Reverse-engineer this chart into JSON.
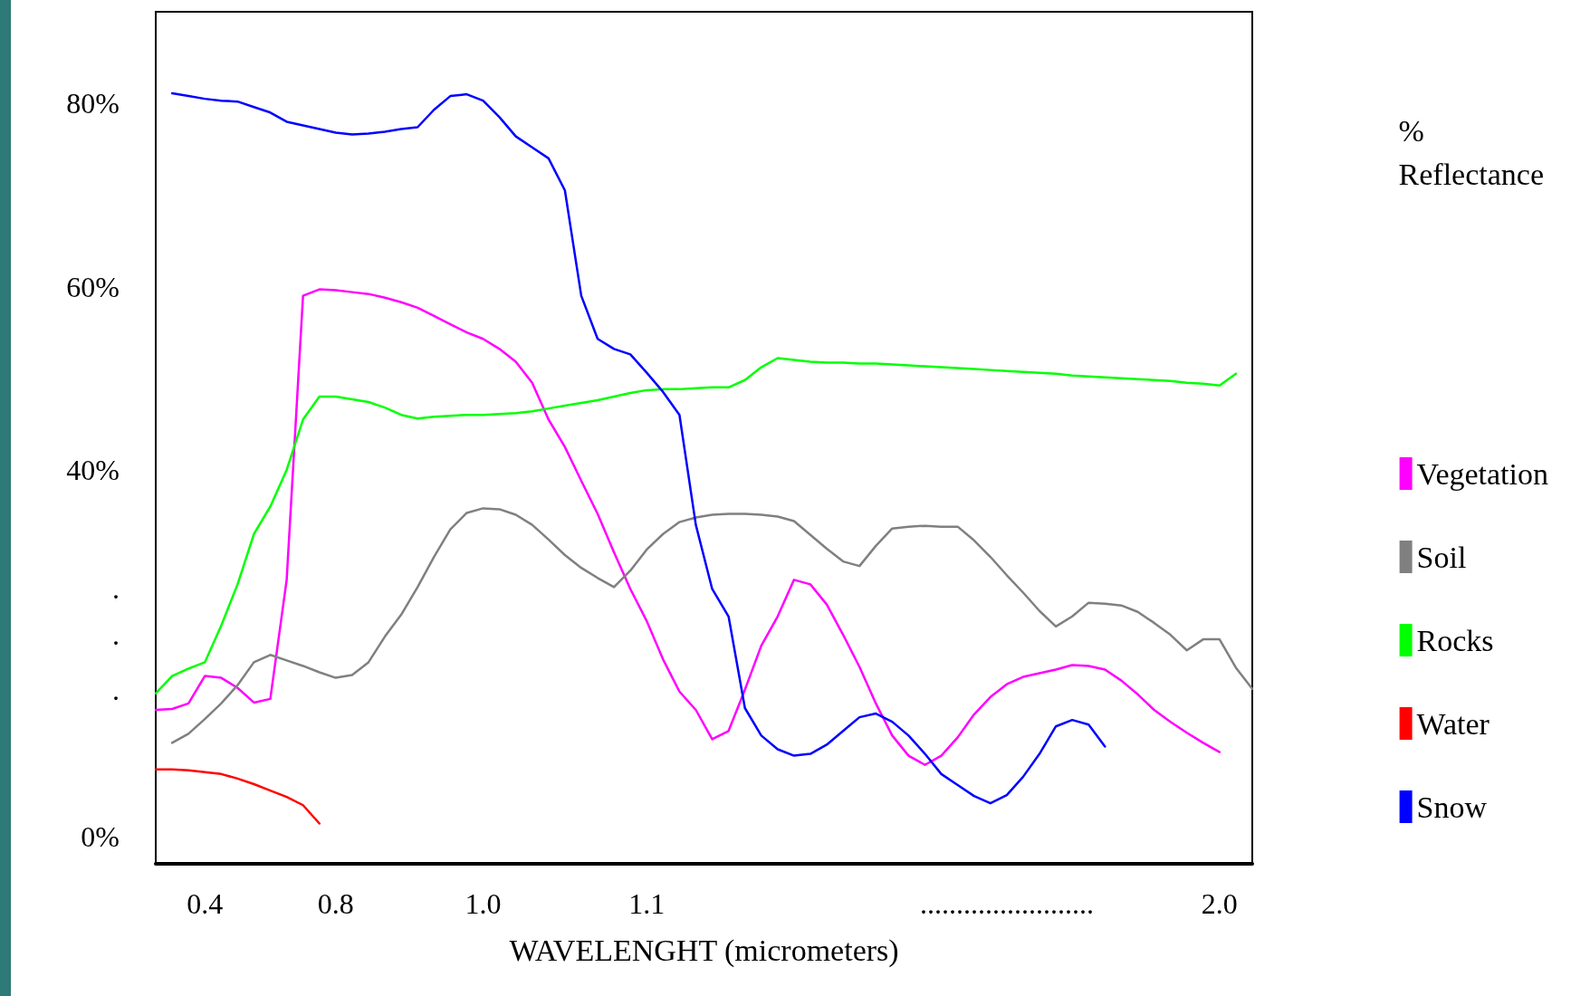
{
  "chart_data": {
    "type": "line",
    "xlabel": "WAVELENGHT (micrometers)",
    "ylabel": "% Reflectance",
    "categories": [
      null,
      null,
      null,
      "0.4",
      null,
      null,
      null,
      null,
      null,
      null,
      null,
      "0.8",
      null,
      null,
      null,
      null,
      null,
      null,
      null,
      null,
      "1.0",
      null,
      null,
      null,
      null,
      null,
      null,
      null,
      null,
      null,
      "1.1",
      null,
      null,
      null,
      null,
      null,
      null,
      null,
      null,
      null,
      null,
      null,
      null,
      null,
      null,
      null,
      null,
      null,
      null,
      null,
      null,
      null,
      "........................",
      null,
      null,
      null,
      null,
      null,
      null,
      null,
      null,
      null,
      null,
      null,
      null,
      "2.0",
      null,
      null
    ],
    "series": [
      {
        "name": "Vegetation",
        "color": "#ff00ff",
        "values": [
          13.8,
          13.9,
          14.5,
          17.5,
          17.3,
          16.2,
          14.6,
          15,
          28,
          59,
          59.7,
          59.6,
          59.4,
          59.2,
          58.8,
          58.3,
          57.7,
          56.8,
          55.9,
          55,
          54.3,
          53.2,
          51.8,
          49.5,
          45.5,
          42.5,
          38.8,
          35.2,
          31,
          27,
          23.5,
          19.3,
          15.8,
          13.8,
          10.6,
          11.5,
          16,
          20.8,
          24,
          28,
          27.5,
          25.3,
          22,
          18.5,
          14.5,
          11,
          8.8,
          7.8,
          8.8,
          10.8,
          13.3,
          15.2,
          16.6,
          17.4,
          17.8,
          18.2,
          18.7,
          18.6,
          18.2,
          17,
          15.5,
          13.8,
          12.5,
          11.3,
          10.2,
          9.2,
          null,
          null
        ]
      },
      {
        "name": "Soil",
        "color": "#808080",
        "values": [
          null,
          10.2,
          11.2,
          12.8,
          14.5,
          16.5,
          19,
          19.8,
          19.2,
          18.6,
          17.9,
          17.3,
          17.6,
          19,
          21.8,
          24.2,
          27.2,
          30.5,
          33.5,
          35.3,
          35.8,
          35.7,
          35.1,
          34,
          32.4,
          30.7,
          29.3,
          28.2,
          27.2,
          29,
          31.3,
          33,
          34.3,
          34.8,
          35.1,
          35.2,
          35.2,
          35.1,
          34.9,
          34.4,
          32.9,
          31.4,
          30,
          29.5,
          31.7,
          33.6,
          33.8,
          33.9,
          33.8,
          33.8,
          32.3,
          30.5,
          28.5,
          26.6,
          24.6,
          22.9,
          24,
          25.5,
          25.4,
          25.2,
          24.5,
          23.3,
          22,
          20.3,
          21.5,
          21.5,
          18.4,
          16.1
        ]
      },
      {
        "name": "Rocks",
        "color": "#00ff00",
        "values": [
          15.6,
          17.5,
          18.3,
          19,
          23,
          27.5,
          33,
          36,
          40,
          45.5,
          48,
          48,
          47.7,
          47.4,
          46.8,
          46,
          45.6,
          45.8,
          45.9,
          46,
          46,
          46.1,
          46.2,
          46.4,
          46.7,
          47,
          47.3,
          47.6,
          48,
          48.4,
          48.7,
          48.8,
          48.8,
          48.9,
          49,
          49,
          49.8,
          51.2,
          52.2,
          52,
          51.8,
          51.7,
          51.7,
          51.6,
          51.6,
          51.5,
          51.4,
          51.3,
          51.2,
          51.1,
          51,
          50.9,
          50.8,
          50.7,
          50.6,
          50.5,
          50.3,
          50.2,
          50.1,
          50,
          49.9,
          49.8,
          49.7,
          49.5,
          49.4,
          49.2,
          50.5,
          null
        ]
      },
      {
        "name": "Water",
        "color": "#ff0000",
        "values": [
          7.3,
          7.3,
          7.2,
          7,
          6.8,
          6.3,
          5.7,
          5,
          4.3,
          3.4,
          1.4,
          null,
          null,
          null,
          null,
          null,
          null,
          null,
          null,
          null,
          null,
          null,
          null,
          null,
          null,
          null,
          null,
          null,
          null,
          null,
          null,
          null,
          null,
          null,
          null,
          null,
          null,
          null,
          null,
          null,
          null,
          null,
          null,
          null,
          null,
          null,
          null,
          null,
          null,
          null,
          null,
          null,
          null,
          null,
          null,
          null,
          null,
          null,
          null,
          null,
          null,
          null,
          null,
          null,
          null,
          null,
          null,
          null
        ]
      },
      {
        "name": "Snow",
        "color": "#0000ff",
        "values": [
          null,
          81.1,
          80.8,
          80.5,
          80.3,
          80.2,
          79.6,
          79,
          78,
          77.6,
          77.2,
          76.8,
          76.6,
          76.7,
          76.9,
          77.2,
          77.4,
          79.3,
          80.8,
          81,
          80.3,
          78.5,
          76.4,
          75.2,
          74,
          70.5,
          59,
          54.3,
          53.2,
          52.6,
          50.6,
          48.5,
          46,
          34,
          27,
          24,
          14,
          11,
          9.5,
          8.8,
          9,
          10,
          11.5,
          13,
          13.4,
          12.5,
          11,
          9,
          6.8,
          5.6,
          4.4,
          3.6,
          4.5,
          6.5,
          9,
          12,
          12.7,
          12.2,
          9.8,
          null,
          null,
          null,
          null,
          null,
          null,
          null,
          null,
          null
        ]
      }
    ],
    "ylim": [
      -3,
      90
    ],
    "yticks": [
      {
        "value": 0,
        "label": "0%"
      },
      {
        "value": 16,
        "label": "."
      },
      {
        "value": 22,
        "label": "."
      },
      {
        "value": 27,
        "label": "."
      },
      {
        "value": 40,
        "label": "40%"
      },
      {
        "value": 60,
        "label": "60%"
      },
      {
        "value": 80,
        "label": "80%"
      }
    ],
    "grid": false,
    "legend": "right",
    "marker": "none",
    "line_style": "solid"
  }
}
